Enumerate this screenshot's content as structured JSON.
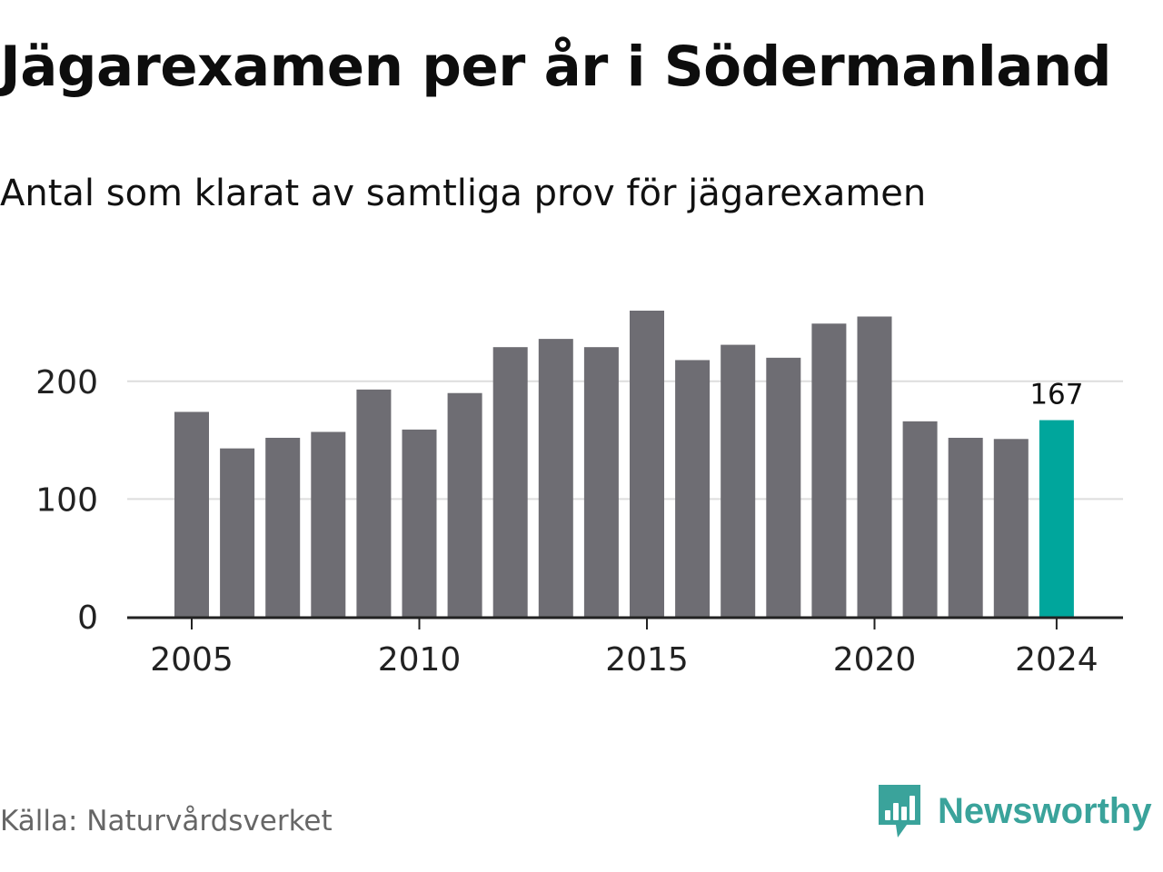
{
  "title": "Jägarexamen per år i Södermanland",
  "subtitle": "Antal som klarat av samtliga prov för jägarexamen",
  "source": "Källa: Naturvårdsverket",
  "brand": {
    "name": "Newsworthy",
    "icon": "newsworthy-logo-icon"
  },
  "colors": {
    "bar": "#6e6d73",
    "highlight": "#00a69c",
    "grid": "#dddddd",
    "axis": "#222222",
    "brand": "#3aa39b"
  },
  "chart_data": {
    "type": "bar",
    "x": [
      2005,
      2006,
      2007,
      2008,
      2009,
      2010,
      2011,
      2012,
      2013,
      2014,
      2015,
      2016,
      2017,
      2018,
      2019,
      2020,
      2021,
      2022,
      2023,
      2024
    ],
    "values": [
      174,
      143,
      152,
      157,
      193,
      159,
      190,
      229,
      236,
      229,
      260,
      218,
      231,
      220,
      249,
      255,
      166,
      152,
      151,
      167
    ],
    "xticks": [
      "2005",
      "2010",
      "2015",
      "2020",
      "2024"
    ],
    "yticks": [
      "0",
      "100",
      "200"
    ],
    "ylim": [
      0,
      260
    ],
    "grid": true,
    "highlight": {
      "x": 2024,
      "label": "167"
    },
    "xlabel": "",
    "ylabel": ""
  }
}
